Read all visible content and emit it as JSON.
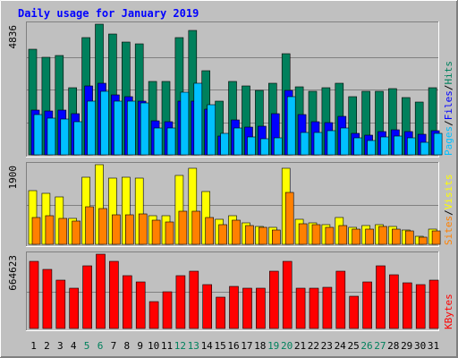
{
  "chart_data": {
    "type": "bar",
    "title": "Daily usage for January 2019",
    "categories": [
      "1",
      "2",
      "3",
      "4",
      "5",
      "6",
      "7",
      "8",
      "9",
      "10",
      "11",
      "12",
      "13",
      "14",
      "15",
      "16",
      "17",
      "18",
      "19",
      "20",
      "21",
      "22",
      "23",
      "24",
      "25",
      "26",
      "27",
      "28",
      "29",
      "30",
      "31"
    ],
    "weekend_days": [
      "5",
      "6",
      "12",
      "13",
      "19",
      "20",
      "26",
      "27"
    ],
    "panels": [
      {
        "name": "pages-files-hits",
        "ymax": 4836,
        "ymax_label": "4836",
        "series": [
          {
            "name": "Hits",
            "color": "#00805c",
            "values": [
              3900,
              3620,
              3680,
              2480,
              4330,
              4836,
              4480,
              4190,
              4100,
              2700,
              2700,
              4350,
              4600,
              3100,
              2000,
              2700,
              2550,
              2380,
              2650,
              3750,
              2520,
              2360,
              2500,
              2650,
              2150,
              2350,
              2350,
              2460,
              2120,
              1970,
              2470
            ]
          },
          {
            "name": "Files",
            "color": "#0000ff",
            "values": [
              1660,
              1620,
              1660,
              1530,
              2560,
              2650,
              2220,
              2150,
              2000,
              1260,
              1220,
              2000,
              2000,
              1700,
              690,
              1300,
              1040,
              1060,
              1530,
              2400,
              1490,
              1210,
              1190,
              1440,
              780,
              730,
              870,
              940,
              850,
              760,
              910
            ]
          },
          {
            "name": "Pages",
            "color": "#00c0ff",
            "values": [
              1490,
              1360,
              1330,
              1210,
              1990,
              2350,
              1990,
              1980,
              1920,
              1010,
              1000,
              2310,
              2640,
              1870,
              780,
              1000,
              670,
              600,
              640,
              2140,
              830,
              830,
              890,
              1010,
              620,
              520,
              650,
              700,
              620,
              460,
              780
            ]
          }
        ],
        "legend": [
          {
            "label": "Pages",
            "color": "#00c0ff"
          },
          {
            "label": "/",
            "color": "#000000"
          },
          {
            "label": "Files",
            "color": "#0000ff"
          },
          {
            "label": "/",
            "color": "#000000"
          },
          {
            "label": "Hits",
            "color": "#00805c"
          }
        ]
      },
      {
        "name": "sites-visits",
        "ymax": 1900,
        "ymax_label": "1900",
        "series": [
          {
            "name": "Visits",
            "color": "#ffff00",
            "values": [
              1280,
              1220,
              1130,
              610,
              1610,
              1900,
              1580,
              1610,
              1580,
              680,
              680,
              1650,
              1820,
              1270,
              590,
              690,
              520,
              430,
              400,
              1820,
              600,
              520,
              470,
              650,
              400,
              440,
              480,
              420,
              340,
              200,
              360
            ]
          },
          {
            "name": "Sites",
            "color": "#ff8000",
            "values": [
              630,
              690,
              620,
              560,
              900,
              850,
              700,
              700,
              720,
              580,
              530,
              780,
              780,
              640,
              460,
              580,
              450,
              400,
              340,
              1240,
              500,
              460,
              410,
              440,
              360,
              360,
              420,
              370,
              330,
              170,
              310
            ]
          }
        ],
        "legend": [
          {
            "label": "Sites",
            "color": "#ff8000"
          },
          {
            "label": "/",
            "color": "#000000"
          },
          {
            "label": "Visits",
            "color": "#ffff00"
          }
        ]
      },
      {
        "name": "kbytes",
        "ymax": 664623,
        "ymax_label": "664623",
        "series": [
          {
            "name": "KBytes",
            "color": "#ff0000",
            "values": [
              600000,
              530000,
              430000,
              360000,
              560000,
              664623,
              600000,
              470000,
              420000,
              240000,
              330000,
              470000,
              510000,
              390000,
              280000,
              380000,
              360000,
              360000,
              510000,
              600000,
              360000,
              360000,
              370000,
              510000,
              290000,
              420000,
              560000,
              480000,
              410000,
              390000,
              430000
            ]
          }
        ],
        "legend": [
          {
            "label": "KBytes",
            "color": "#ff0000"
          }
        ]
      }
    ],
    "colors": {
      "background": "#c0c0c0",
      "title": "#0000ff",
      "grid": "#808080",
      "weekend_label": "#00805c",
      "weekday_label": "#000000"
    }
  }
}
